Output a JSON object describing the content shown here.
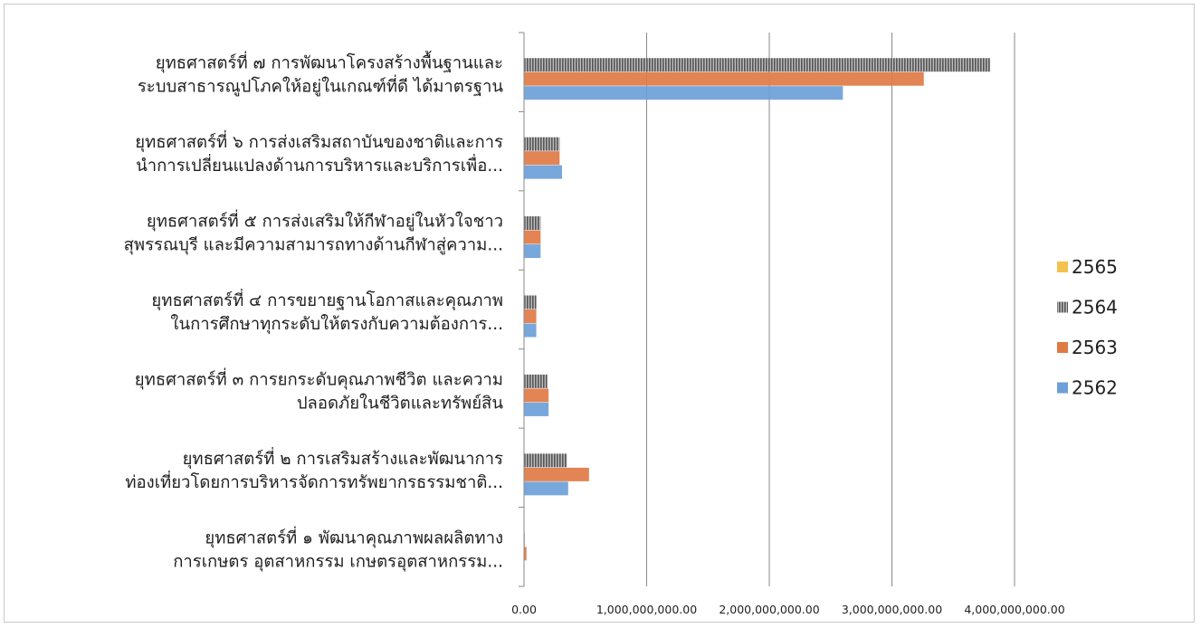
{
  "chart_data": {
    "type": "bar",
    "orientation": "horizontal",
    "categories": [
      [
        "ยุทธศาสตร์ที่ ๗   การพัฒนาโครงสร้างพื้นฐานและ",
        "ระบบสาธารณูปโภคให้อยู่ในเกณฑ์ที่ดี  ได้มาตรฐาน"
      ],
      [
        "ยุทธศาสตร์ที่ ๖  การส่งเสริมสถาบันของชาติและการ",
        "นำการเปลี่ยนแปลงด้านการบริหารและบริการเพื่อ..."
      ],
      [
        "ยุทธศาสตร์ที่ ๕ การส่งเสริมให้กีฬาอยู่ในหัวใจชาว",
        "สุพรรณบุรี และมีความสามารถทางด้านกีฬาสู่ความ..."
      ],
      [
        "ยุทธศาสตร์ที่ ๔   การขยายฐานโอกาสและคุณภาพ",
        "ในการศึกษาทุกระดับให้ตรงกับความต้องการ..."
      ],
      [
        "ยุทธศาสตร์ที่ ๓  การยกระดับคุณภาพชีวิต และความ",
        "ปลอดภัยในชีวิตและทรัพย์สิน"
      ],
      [
        "ยุทธศาสตร์ที่  ๒  การเสริมสร้างและพัฒนาการ",
        "ท่องเที่ยวโดยการบริหารจัดการทรัพยากรธรรมชาติ..."
      ],
      [
        "ยุทธศาสตร์ที่  ๑   พัฒนาคุณภาพผลผลิตทาง",
        "การเกษตร  อุตสาหกรรม เกษตรอุตสาหกรรม..."
      ]
    ],
    "series": [
      {
        "name": "2565",
        "color": "#f2c14e",
        "pattern": "solid",
        "values": [
          0,
          0,
          0,
          0,
          0,
          0,
          0
        ]
      },
      {
        "name": "2564",
        "color": "#808080",
        "pattern": "stripes",
        "values": [
          3800000000,
          290000000,
          135000000,
          100000000,
          190000000,
          350000000,
          5000000
        ]
      },
      {
        "name": "2563",
        "color": "#e07a45",
        "pattern": "solid",
        "values": [
          3260000000,
          290000000,
          135000000,
          100000000,
          200000000,
          530000000,
          20000000
        ]
      },
      {
        "name": "2562",
        "color": "#6d9fd8",
        "pattern": "solid",
        "values": [
          2600000000,
          310000000,
          135000000,
          100000000,
          200000000,
          360000000,
          0
        ]
      }
    ],
    "xlim": [
      0,
      4000000000
    ],
    "xticks": [
      0,
      1000000000,
      2000000000,
      3000000000,
      4000000000
    ],
    "xtick_labels": [
      "0.00",
      "1,000,000,000.00",
      "2,000,000,000.00",
      "3,000,000,000.00",
      "4,000,000,000.00"
    ],
    "legend_order": [
      "2565",
      "2564",
      "2563",
      "2562"
    ],
    "legend_position": "right",
    "gridlines": "vertical",
    "title": "",
    "xlabel": "",
    "ylabel": ""
  }
}
